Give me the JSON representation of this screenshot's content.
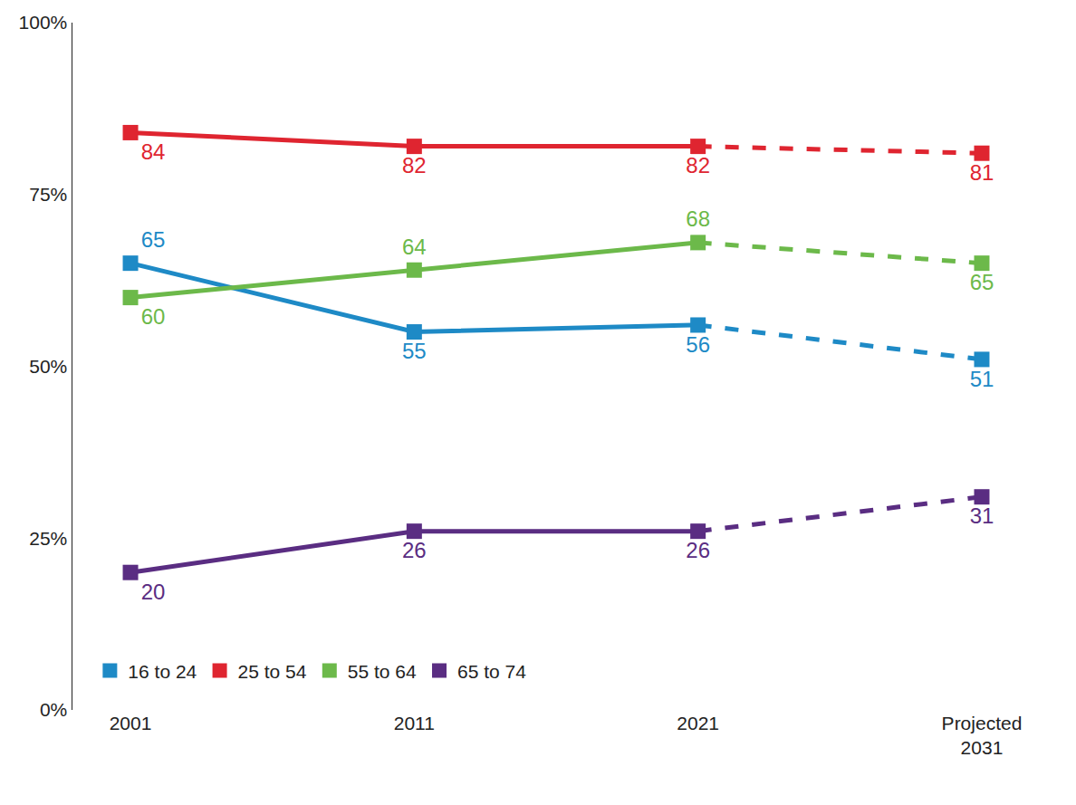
{
  "chart_data": {
    "type": "line",
    "categories": [
      "2001",
      "2011",
      "2021",
      "Projected 2031"
    ],
    "series": [
      {
        "name": "16 to 24",
        "color": "#1e8ac6",
        "values": [
          65,
          55,
          56,
          51
        ],
        "line_style": "dashed_last",
        "marker": "square"
      },
      {
        "name": "25 to 54",
        "color": "#df2530",
        "values": [
          84,
          82,
          82,
          81
        ],
        "line_style": "dashed_last",
        "marker": "square"
      },
      {
        "name": "55 to 64",
        "color": "#6cb94a",
        "values": [
          60,
          64,
          68,
          65
        ],
        "line_style": "dashed_last",
        "marker": "square"
      },
      {
        "name": "65 to 74",
        "color": "#5a2d82",
        "values": [
          20,
          26,
          26,
          31
        ],
        "line_style": "dashed_last",
        "marker": "square"
      }
    ],
    "ylim": [
      0,
      100
    ],
    "yticks": [
      {
        "value": 0,
        "label": "0%"
      },
      {
        "value": 25,
        "label": "25%"
      },
      {
        "value": 50,
        "label": "50%"
      },
      {
        "value": 75,
        "label": "75%"
      },
      {
        "value": 100,
        "label": "100%"
      }
    ],
    "grid": false,
    "legend": "bottom-left",
    "data_labels": true
  }
}
